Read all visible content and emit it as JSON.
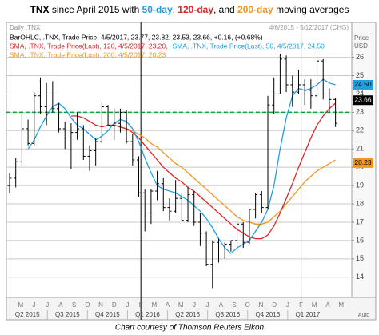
{
  "chart_data": {
    "type": "ohlc",
    "title": [
      {
        "text": "TNX",
        "bold": true,
        "color": "#000000"
      },
      {
        "text": " since April 2015 with ",
        "bold": false,
        "color": "#000000"
      },
      {
        "text": "50-day",
        "bold": true,
        "color": "#1f9fe0"
      },
      {
        "text": ", ",
        "bold": false,
        "color": "#000000"
      },
      {
        "text": "120-day",
        "bold": true,
        "color": "#e02424"
      },
      {
        "text": ", and ",
        "bold": false,
        "color": "#000000"
      },
      {
        "text": "200-day",
        "bold": true,
        "color": "#f0961e"
      },
      {
        "text": " moving averages",
        "bold": false,
        "color": "#000000"
      }
    ],
    "header": "Daily .TNX",
    "date_range": "4/6/2015 - 5/12/2017 (CHG)",
    "y_axis_label": [
      "Price",
      "USD"
    ],
    "corner_label": "Auto",
    "footer": "Chart courtesy of Thomson Reuters Eikon",
    "months": [
      "M",
      "J",
      "J",
      "A",
      "S",
      "O",
      "N",
      "D",
      "J",
      "F",
      "M",
      "A",
      "M",
      "J",
      "J",
      "A",
      "S",
      "O",
      "N",
      "D",
      "J",
      "F",
      "M",
      "A",
      "M"
    ],
    "quarters": [
      "Q2 2015",
      "Q3 2015",
      "Q4 2015",
      "Q1 2016",
      "Q2 2016",
      "Q3 2016",
      "Q4 2016",
      "Q1 2017"
    ],
    "ylim": [
      12.9,
      27.9
    ],
    "yticks": [
      14,
      15,
      16,
      17,
      18,
      19,
      20,
      21,
      22,
      23,
      24,
      25,
      26
    ],
    "grid": true,
    "hline": {
      "value": 23,
      "color": "#1a9a3a"
    },
    "series": [
      {
        "name": "BarOHLC, .TNX, Trade Price, 4/5/2017, 23.77, 23.82, 23.53, 23.66, +0.16, (+0.68%)",
        "color": "#000000",
        "open": [
          19.0,
          19.4,
          20.3,
          22.1,
          21.3,
          23.9,
          23.3,
          24.0,
          23.2,
          22.1,
          21.6,
          21.9,
          22.1,
          20.6,
          20.9,
          21.4,
          23.3,
          22.3,
          22.4,
          23.0,
          21.4,
          20.4,
          18.6,
          17.5,
          18.7,
          19.1,
          17.8,
          17.6,
          18.3,
          17.1,
          18.5,
          17.0,
          16.4,
          14.7,
          15.9,
          15.1,
          15.8,
          16.0,
          16.9,
          15.9,
          17.7,
          18.5,
          17.8,
          23.4,
          24.0,
          25.9,
          24.5,
          24.1,
          24.5,
          24.2,
          23.9,
          25.8,
          24.0,
          23.7
        ],
        "high": [
          19.7,
          20.5,
          22.9,
          22.6,
          24.1,
          24.9,
          24.6,
          24.7,
          23.5,
          22.5,
          22.4,
          23.0,
          22.3,
          21.2,
          21.6,
          23.6,
          23.4,
          23.2,
          23.2,
          23.1,
          21.8,
          20.6,
          18.8,
          18.8,
          19.8,
          19.4,
          18.3,
          19.3,
          18.6,
          18.9,
          18.7,
          17.5,
          16.5,
          16.0,
          16.1,
          15.9,
          16.0,
          17.4,
          17.0,
          17.7,
          18.6,
          18.7,
          23.9,
          24.9,
          26.2,
          26.1,
          25.0,
          25.3,
          24.8,
          24.8,
          26.2,
          25.9,
          24.3,
          23.8
        ],
        "low": [
          18.6,
          18.9,
          20.1,
          21.2,
          21.2,
          22.9,
          22.3,
          23.0,
          21.9,
          21.0,
          19.9,
          21.5,
          20.4,
          19.8,
          20.1,
          21.3,
          22.3,
          21.5,
          21.9,
          21.3,
          20.1,
          18.4,
          16.5,
          16.9,
          18.2,
          17.6,
          17.1,
          17.5,
          17.1,
          17.0,
          16.8,
          15.7,
          14.6,
          13.4,
          14.8,
          15.0,
          15.4,
          15.4,
          15.6,
          15.8,
          17.2,
          17.5,
          17.7,
          22.9,
          24.0,
          24.1,
          23.3,
          24.0,
          23.4,
          23.2,
          23.8,
          23.7,
          23.0,
          22.2
        ],
        "close": [
          19.4,
          20.3,
          22.1,
          21.3,
          23.9,
          23.3,
          24.0,
          23.2,
          22.1,
          21.6,
          21.9,
          22.1,
          20.6,
          20.9,
          21.4,
          23.3,
          22.3,
          22.4,
          23.0,
          21.4,
          20.4,
          18.6,
          17.5,
          18.7,
          19.1,
          17.8,
          17.6,
          18.3,
          17.1,
          18.5,
          17.0,
          16.4,
          14.7,
          15.9,
          15.1,
          15.8,
          16.0,
          16.9,
          15.9,
          17.7,
          18.5,
          17.8,
          23.4,
          24.0,
          25.9,
          24.5,
          24.1,
          24.5,
          24.2,
          23.9,
          25.8,
          24.0,
          23.7,
          22.4
        ]
      },
      {
        "name": "SMA, .TNX, Trade Price(Last), 50, 4/5/2017, 24.50",
        "color": "#1f9fe0",
        "values": [
          null,
          null,
          null,
          21.0,
          21.5,
          22.2,
          22.8,
          23.3,
          23.5,
          23.2,
          22.7,
          22.3,
          22.1,
          21.8,
          21.5,
          21.7,
          22.0,
          22.4,
          22.6,
          22.5,
          22.1,
          21.4,
          20.5,
          19.7,
          19.0,
          18.8,
          18.7,
          18.6,
          18.4,
          18.2,
          17.9,
          17.6,
          17.2,
          16.7,
          16.1,
          15.6,
          15.3,
          15.6,
          15.8,
          16.0,
          16.5,
          17.0,
          17.7,
          19.0,
          21.0,
          22.7,
          23.9,
          24.3,
          24.2,
          24.3,
          24.5,
          24.8,
          24.6,
          24.5
        ]
      },
      {
        "name": "SMA, .TNX, Trade Price(Last), 120, 4/5/2017, 23.20,",
        "color": "#e02424",
        "values": [
          null,
          null,
          null,
          null,
          null,
          null,
          null,
          null,
          null,
          null,
          22.8,
          22.8,
          22.7,
          22.5,
          22.3,
          22.2,
          22.3,
          22.3,
          22.2,
          22.1,
          21.9,
          21.6,
          21.2,
          20.8,
          20.4,
          20.0,
          19.7,
          19.4,
          19.2,
          18.9,
          18.7,
          18.4,
          18.1,
          17.8,
          17.5,
          17.2,
          16.9,
          16.6,
          16.4,
          16.2,
          16.1,
          16.1,
          16.3,
          16.8,
          17.5,
          18.3,
          19.1,
          20.0,
          20.8,
          21.6,
          22.3,
          22.8,
          23.2,
          23.5
        ]
      },
      {
        "name": "SMA, .TNX, Trade Price(Last), 200, 4/5/2017, 20.23",
        "color": "#f0961e",
        "values": [
          null,
          null,
          null,
          null,
          null,
          null,
          null,
          null,
          null,
          null,
          null,
          null,
          null,
          null,
          null,
          null,
          null,
          22.3,
          22.2,
          22.1,
          22.0,
          21.8,
          21.6,
          21.3,
          21.1,
          20.8,
          20.5,
          20.2,
          20.0,
          19.7,
          19.4,
          19.1,
          18.8,
          18.5,
          18.2,
          17.9,
          17.6,
          17.3,
          17.1,
          17.0,
          16.9,
          16.9,
          17.0,
          17.3,
          17.6,
          18.0,
          18.4,
          18.8,
          19.2,
          19.5,
          19.8,
          20.0,
          20.2,
          20.4
        ]
      }
    ],
    "price_labels": [
      {
        "value": 24.5,
        "label": "24.50",
        "color": "#1f9fe0",
        "text_color": "#000000"
      },
      {
        "value": 23.66,
        "label": "23.66",
        "color": "#000000",
        "text_color": "#ffffff"
      },
      {
        "value": 20.23,
        "label": "20.23",
        "color": "#f0961e",
        "text_color": "#000000"
      }
    ]
  }
}
